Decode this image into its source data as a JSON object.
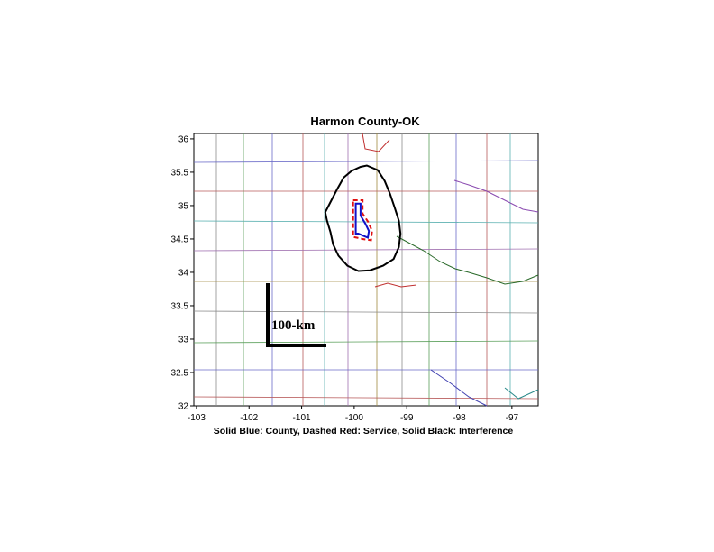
{
  "chart_data": {
    "type": "map",
    "title": "Harmon County-OK",
    "caption": "Solid Blue: County, Dashed Red: Service, Solid Black: Interference",
    "xlim": [
      -103.05,
      -96.5
    ],
    "ylim": [
      32.0,
      36.08
    ],
    "xticks": [
      -103,
      -102,
      -101,
      -100,
      -99,
      -98,
      -97
    ],
    "yticks": [
      32,
      32.5,
      33,
      33.5,
      34,
      34.5,
      35,
      35.5,
      36
    ],
    "scale_bar": {
      "label": "100-km"
    },
    "county": {
      "name": "Harmon County",
      "color": "#1010c8",
      "lon_lat": [
        [
          -99.97,
          35.03
        ],
        [
          -99.88,
          35.03
        ],
        [
          -99.88,
          34.85
        ],
        [
          -99.78,
          34.72
        ],
        [
          -99.72,
          34.62
        ],
        [
          -99.74,
          34.52
        ],
        [
          -99.83,
          34.55
        ],
        [
          -99.92,
          34.58
        ],
        [
          -99.97,
          34.58
        ],
        [
          -99.97,
          35.03
        ]
      ]
    },
    "service": {
      "color": "#e01010",
      "lon_lat": [
        [
          -100.02,
          35.08
        ],
        [
          -99.84,
          35.08
        ],
        [
          -99.84,
          34.88
        ],
        [
          -99.73,
          34.75
        ],
        [
          -99.66,
          34.62
        ],
        [
          -99.68,
          34.48
        ],
        [
          -99.84,
          34.5
        ],
        [
          -99.95,
          34.52
        ],
        [
          -100.02,
          34.53
        ],
        [
          -100.02,
          35.08
        ]
      ]
    },
    "interference": {
      "color": "#000000",
      "lon_lat": [
        [
          -99.76,
          35.6
        ],
        [
          -99.55,
          35.53
        ],
        [
          -99.42,
          35.37
        ],
        [
          -99.32,
          35.18
        ],
        [
          -99.23,
          34.97
        ],
        [
          -99.15,
          34.77
        ],
        [
          -99.12,
          34.58
        ],
        [
          -99.15,
          34.38
        ],
        [
          -99.25,
          34.2
        ],
        [
          -99.45,
          34.1
        ],
        [
          -99.7,
          34.03
        ],
        [
          -99.92,
          34.02
        ],
        [
          -100.13,
          34.1
        ],
        [
          -100.3,
          34.25
        ],
        [
          -100.4,
          34.42
        ],
        [
          -100.45,
          34.6
        ],
        [
          -100.52,
          34.78
        ],
        [
          -100.55,
          34.9
        ],
        [
          -100.42,
          35.1
        ],
        [
          -100.32,
          35.25
        ],
        [
          -100.2,
          35.42
        ],
        [
          -100.05,
          35.52
        ],
        [
          -99.88,
          35.58
        ],
        [
          -99.76,
          35.6
        ]
      ]
    }
  }
}
